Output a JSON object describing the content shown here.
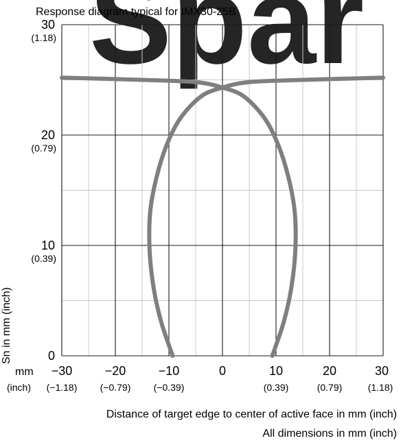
{
  "watermark": {
    "text": "Spar",
    "color": "#e8323c"
  },
  "footer": {
    "dimensions_note": "All dimensions in mm (inch)"
  },
  "chart_data": {
    "type": "line",
    "title": "Response diagram typical for IMX30-25B",
    "xlabel": "Distance of target edge to center of active face in mm (inch)",
    "ylabel": "Sn in mm (inch)",
    "xlim": [
      -30,
      30
    ],
    "ylim": [
      0,
      30
    ],
    "grid": true,
    "x_unit_labels": {
      "primary": "mm",
      "secondary": "(inch)"
    },
    "x_ticks": [
      {
        "value": -30,
        "label": "−30",
        "sublabel": "(−1.18)"
      },
      {
        "value": -20,
        "label": "−20",
        "sublabel": "(−0.79)"
      },
      {
        "value": -10,
        "label": "−10",
        "sublabel": "(−0.39)"
      },
      {
        "value": 0,
        "label": "0",
        "sublabel": ""
      },
      {
        "value": 10,
        "label": "10",
        "sublabel": "(0.39)"
      },
      {
        "value": 20,
        "label": "20",
        "sublabel": "(0.79)"
      },
      {
        "value": 30,
        "label": "30",
        "sublabel": "(1.18)"
      }
    ],
    "y_ticks": [
      {
        "value": 0,
        "label": "0",
        "sublabel": ""
      },
      {
        "value": 10,
        "label": "10",
        "sublabel": "(0.39)"
      },
      {
        "value": 20,
        "label": "20",
        "sublabel": "(0.79)"
      },
      {
        "value": 30,
        "label": "30",
        "sublabel": "(1.18)"
      }
    ],
    "curve_color": "#7f7f80",
    "series": [
      {
        "values": [
          [
            -9.3,
            0
          ],
          [
            -11.4,
            3
          ],
          [
            -12.8,
            6
          ],
          [
            -13.6,
            9.5
          ],
          [
            -13.5,
            13
          ],
          [
            -12.4,
            16
          ],
          [
            -10.5,
            19
          ],
          [
            -7.9,
            21.5
          ],
          [
            -4,
            23.5
          ],
          [
            0,
            24.3
          ],
          [
            5,
            24.8
          ],
          [
            15,
            25.0
          ],
          [
            30,
            25.2
          ]
        ]
      },
      {
        "values": [
          [
            9.3,
            0
          ],
          [
            11.4,
            3
          ],
          [
            12.8,
            6
          ],
          [
            13.6,
            9.5
          ],
          [
            13.5,
            13
          ],
          [
            12.4,
            16
          ],
          [
            10.5,
            19
          ],
          [
            7.9,
            21.5
          ],
          [
            4,
            23.5
          ],
          [
            0,
            24.3
          ],
          [
            -5,
            24.8
          ],
          [
            -15,
            25.0
          ],
          [
            -30,
            25.2
          ]
        ]
      }
    ]
  }
}
